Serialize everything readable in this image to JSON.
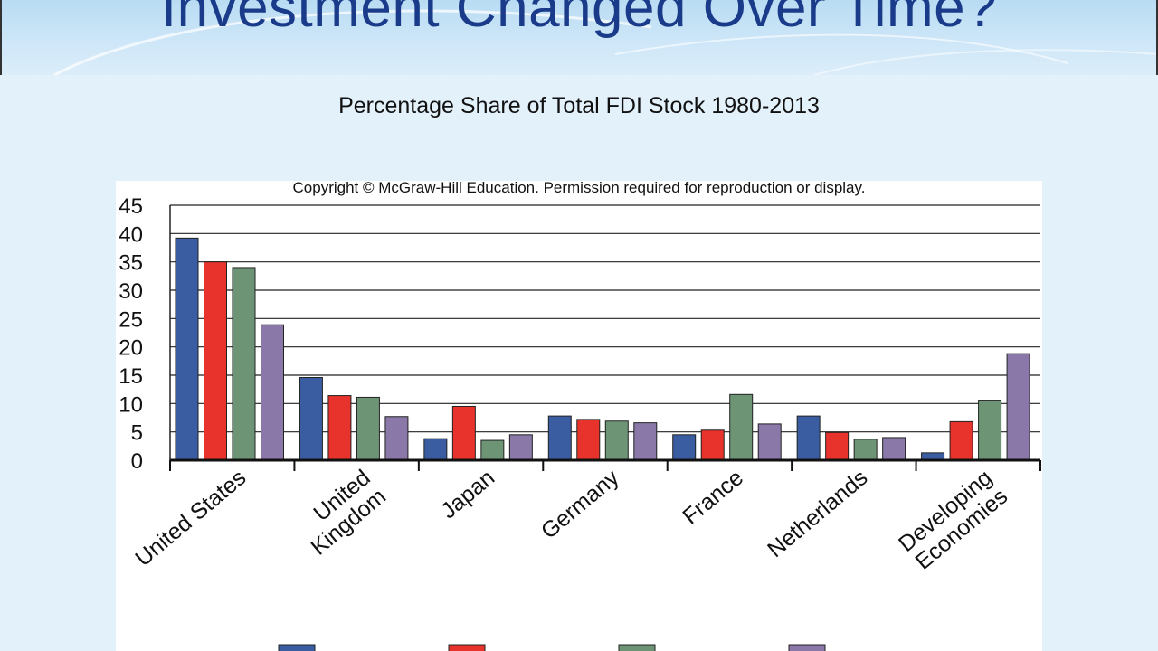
{
  "slide": {
    "title": "Investment Changed Over Time?"
  },
  "chart_data": {
    "type": "bar",
    "title": "Percentage Share of Total FDI Stock 1980-2013",
    "note": "Copyright © McGraw-Hill Education. Permission required for reproduction or display.",
    "categories": [
      "United States",
      "United Kingdom",
      "Japan",
      "Germany",
      "France",
      "Netherlands",
      "Developing Economies"
    ],
    "category_label_lines": [
      [
        "United States"
      ],
      [
        "United",
        "Kingdom"
      ],
      [
        "Japan"
      ],
      [
        "Germany"
      ],
      [
        "France"
      ],
      [
        "Netherlands"
      ],
      [
        "Developing",
        "Economies"
      ]
    ],
    "series": [
      {
        "color": "#3a5da1",
        "values": [
          39.2,
          14.6,
          3.8,
          7.8,
          4.5,
          7.8,
          1.3
        ]
      },
      {
        "color": "#e8332c",
        "values": [
          35,
          11.4,
          9.5,
          7.2,
          5.3,
          4.9,
          6.8
        ]
      },
      {
        "color": "#6d9575",
        "values": [
          34,
          11.1,
          3.5,
          6.9,
          11.6,
          3.7,
          10.6
        ]
      },
      {
        "color": "#8a78a8",
        "values": [
          23.9,
          7.7,
          4.5,
          6.6,
          6.4,
          4.0,
          18.8
        ]
      }
    ],
    "yticks": [
      0,
      5,
      10,
      15,
      20,
      25,
      30,
      35,
      40,
      45
    ],
    "ylim": [
      0,
      45
    ],
    "grid": true,
    "legend_position": "bottom"
  }
}
